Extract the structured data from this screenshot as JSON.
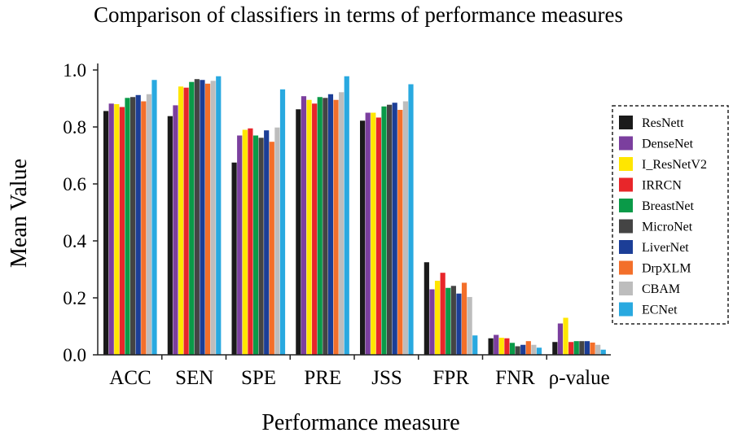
{
  "chart_data": {
    "type": "bar",
    "title": "Comparison of classifiers in terms of performance measures",
    "xlabel": "Performance measure",
    "ylabel": "Mean Value",
    "ylim": [
      0,
      1.0
    ],
    "yticks": [
      "0.0",
      "0.2",
      "0.4",
      "0.6",
      "0.8",
      "1.0"
    ],
    "categories": [
      "ACC",
      "SEN",
      "SPE",
      "PRE",
      "JSS",
      "FPR",
      "FNR",
      "ρ-value"
    ],
    "legend_position": "right",
    "series": [
      {
        "name": "ResNett",
        "color": "#1a1a1a",
        "values": [
          0.856,
          0.838,
          0.675,
          0.862,
          0.822,
          0.325,
          0.058,
          0.045
        ]
      },
      {
        "name": "DenseNet",
        "color": "#7b3f9e",
        "values": [
          0.882,
          0.876,
          0.77,
          0.908,
          0.85,
          0.23,
          0.07,
          0.11
        ]
      },
      {
        "name": "I_ResNetV2",
        "color": "#ffe600",
        "values": [
          0.88,
          0.942,
          0.79,
          0.895,
          0.85,
          0.26,
          0.06,
          0.13
        ]
      },
      {
        "name": "IRRCN",
        "color": "#e8262a",
        "values": [
          0.87,
          0.938,
          0.795,
          0.882,
          0.833,
          0.288,
          0.058,
          0.045
        ]
      },
      {
        "name": "BreastNet",
        "color": "#0a9a48",
        "values": [
          0.902,
          0.958,
          0.77,
          0.905,
          0.872,
          0.235,
          0.042,
          0.048
        ]
      },
      {
        "name": "MicroNet",
        "color": "#444444",
        "values": [
          0.905,
          0.968,
          0.762,
          0.902,
          0.878,
          0.242,
          0.03,
          0.048
        ]
      },
      {
        "name": "LiverNet",
        "color": "#1c3e97",
        "values": [
          0.912,
          0.965,
          0.788,
          0.915,
          0.885,
          0.215,
          0.035,
          0.048
        ]
      },
      {
        "name": "DrpXLM",
        "color": "#f36f2a",
        "values": [
          0.89,
          0.952,
          0.748,
          0.895,
          0.86,
          0.253,
          0.048,
          0.043
        ]
      },
      {
        "name": "CBAM",
        "color": "#bdbdbd",
        "values": [
          0.915,
          0.962,
          0.798,
          0.922,
          0.89,
          0.203,
          0.035,
          0.035
        ]
      },
      {
        "name": "ECNet",
        "color": "#29a9e0",
        "values": [
          0.965,
          0.978,
          0.932,
          0.978,
          0.95,
          0.068,
          0.025,
          0.018
        ]
      }
    ]
  }
}
